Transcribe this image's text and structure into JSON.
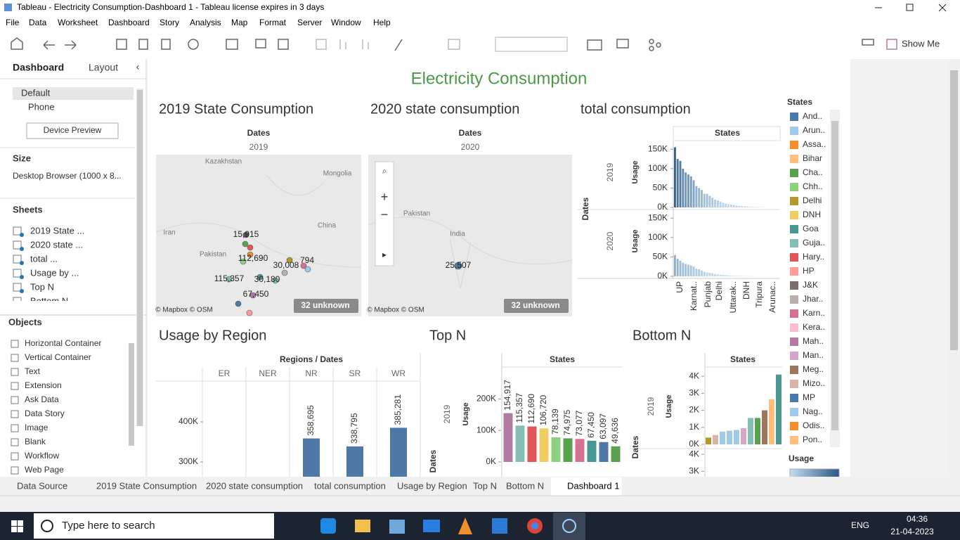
{
  "window": {
    "title": "Tableau - Electricity Consumption-Dashboard 1 - Tableau license expires in 3 days"
  },
  "menu": [
    "File",
    "Data",
    "Worksheet",
    "Dashboard",
    "Story",
    "Analysis",
    "Map",
    "Format",
    "Server",
    "Window",
    "Help"
  ],
  "toolbar": {
    "show_me": "Show Me"
  },
  "sidebar": {
    "tabs": [
      "Dashboard",
      "Layout"
    ],
    "devices": [
      "Default",
      "Phone"
    ],
    "device_preview": "Device Preview",
    "size_heading": "Size",
    "size_value": "Desktop Browser (1000 x 8...",
    "sheets_heading": "Sheets",
    "sheets": [
      "2019 State ...",
      "2020 state ...",
      "total ...",
      "Usage by ...",
      "Top N",
      "Bottom N"
    ],
    "objects_heading": "Objects",
    "objects": [
      "Horizontal Container",
      "Vertical Container",
      "Text",
      "Extension",
      "Ask Data",
      "Data Story",
      "Image",
      "Blank",
      "Workflow",
      "Web Page"
    ]
  },
  "dashboard": {
    "title": "Electricity Consumption",
    "map_2019": {
      "title": "2019 State Consumption",
      "header": "Dates",
      "year": "2019",
      "places": [
        "Kazakhstan",
        "Mongolia",
        "Iran",
        "China",
        "Pakistan"
      ],
      "values": [
        "15,915",
        "112,690",
        "30,008",
        "794",
        "115,357",
        "30,180",
        "67,450"
      ],
      "attribution": "© Mapbox © OSM",
      "unknown": "32 unknown"
    },
    "map_2020": {
      "title": "2020 state consumption",
      "header": "Dates",
      "year": "2020",
      "places": [
        "Pakistan",
        "India"
      ],
      "values": [
        "25,507"
      ],
      "attribution": "© Mapbox © OSM",
      "unknown": "32 unknown"
    },
    "total": {
      "title": "total consumption",
      "row_header": "Dates",
      "col_header": "States",
      "axis_label": "Usage",
      "ylim": [
        0,
        165000
      ],
      "yticks": [
        {
          "value": 0,
          "label": "0K"
        },
        {
          "value": 50000,
          "label": "50K"
        },
        {
          "value": 100000,
          "label": "100K"
        },
        {
          "value": 150000,
          "label": "150K"
        }
      ],
      "panels": [
        {
          "year": "2019",
          "values": [
            155000,
            125000,
            120000,
            100000,
            90000,
            85000,
            80000,
            70000,
            55000,
            50000,
            45000,
            35000,
            35000,
            30000,
            25000,
            20000,
            18000,
            15000,
            12000,
            10000,
            8000,
            7000,
            6000,
            5000,
            4000,
            3500,
            3000,
            2500,
            2000,
            1500,
            1200,
            1000,
            800,
            600,
            400,
            200
          ]
        },
        {
          "year": "2020",
          "values": [
            55000,
            45000,
            40000,
            35000,
            32000,
            30000,
            28000,
            25000,
            20000,
            18000,
            15000,
            12000,
            10000,
            9000,
            8000,
            6000,
            5000,
            4000,
            3500,
            3000,
            2500,
            2000,
            1500,
            1200,
            1000,
            800,
            600,
            500,
            400,
            300,
            250,
            200,
            150,
            100,
            80,
            50
          ]
        }
      ],
      "x_labels": [
        "UP",
        "Karnat..",
        "Punjab",
        "Delhi",
        "Uttarak..",
        "DNH",
        "Tripura",
        "Arunac.."
      ]
    },
    "legend": {
      "title": "States",
      "usage_title": "Usage",
      "items": [
        {
          "name": "And..",
          "color": "#4e79a7"
        },
        {
          "name": "Arun..",
          "color": "#a0cbe8"
        },
        {
          "name": "Assa..",
          "color": "#f28e2b"
        },
        {
          "name": "Bihar",
          "color": "#ffbe7d"
        },
        {
          "name": "Cha..",
          "color": "#59a14f"
        },
        {
          "name": "Chh..",
          "color": "#8cd17d"
        },
        {
          "name": "Delhi",
          "color": "#b6992d"
        },
        {
          "name": "DNH",
          "color": "#f1ce63"
        },
        {
          "name": "Goa",
          "color": "#499894"
        },
        {
          "name": "Guja..",
          "color": "#86bcb6"
        },
        {
          "name": "Hary..",
          "color": "#e15759"
        },
        {
          "name": "HP",
          "color": "#ff9d9a"
        },
        {
          "name": "J&K",
          "color": "#79706e"
        },
        {
          "name": "Jhar..",
          "color": "#bab0ac"
        },
        {
          "name": "Karn..",
          "color": "#d37295"
        },
        {
          "name": "Kera..",
          "color": "#fabfd2"
        },
        {
          "name": "Mah..",
          "color": "#b07aa1"
        },
        {
          "name": "Man..",
          "color": "#d4a6c8"
        },
        {
          "name": "Meg..",
          "color": "#9d7660"
        },
        {
          "name": "Mizo..",
          "color": "#d7b5a6"
        },
        {
          "name": "MP",
          "color": "#4e79a7"
        },
        {
          "name": "Nag..",
          "color": "#a0cbe8"
        },
        {
          "name": "Odis..",
          "color": "#f28e2b"
        },
        {
          "name": "Pon..",
          "color": "#ffbe7d"
        }
      ]
    },
    "region": {
      "title": "Usage by Region",
      "header": "Regions / Dates",
      "categories": [
        "ER",
        "NER",
        "NR",
        "SR",
        "WR"
      ],
      "values": [
        null,
        null,
        358695,
        338795,
        385281
      ],
      "value_labels": [
        null,
        null,
        "358,695",
        "338,795",
        "385,281"
      ],
      "color": "#4e79a7",
      "ylim": [
        260000,
        500000
      ],
      "yticks": [
        {
          "value": 300000,
          "label": "300K"
        },
        {
          "value": 400000,
          "label": "400K"
        }
      ]
    },
    "top_n": {
      "title": "Top N",
      "header": "States",
      "row_header": "Dates",
      "year": "2019",
      "axis_label": "Usage",
      "values": [
        154917,
        115357,
        112690,
        106720,
        78139,
        74975,
        73077,
        67450,
        63097,
        49636
      ],
      "value_labels": [
        "154,917",
        "115,357",
        "112,690",
        "106,720",
        "78,139",
        "74,975",
        "73,077",
        "67,450",
        "63,097",
        "49,636"
      ],
      "colors": [
        "#b07aa1",
        "#86bcb6",
        "#e15759",
        "#f1ce63",
        "#8cd17d",
        "#59a14f",
        "#d37295",
        "#499894",
        "#4e79a7",
        "#59a14f"
      ],
      "ylim": [
        0,
        250000
      ],
      "yticks": [
        {
          "value": 0,
          "label": "0K"
        },
        {
          "value": 100000,
          "label": "100K"
        },
        {
          "value": 200000,
          "label": "200K"
        }
      ]
    },
    "bottom_n": {
      "title": "Bottom N",
      "header": "States",
      "row_header": "Dates",
      "year": "2019",
      "axis_label": "Usage",
      "values": [
        400,
        550,
        750,
        800,
        850,
        950,
        1550,
        1550,
        2000,
        2650,
        4100
      ],
      "colors": [
        "#b6992d",
        "#d7b5a6",
        "#a0cbe8",
        "#a0cbe8",
        "#a0cbe8",
        "#d4a6c8",
        "#86bcb6",
        "#59a14f",
        "#9d7660",
        "#ffbe7d",
        "#499894"
      ],
      "ylim": [
        0,
        4500
      ],
      "yticks": [
        {
          "value": 0,
          "label": "0K"
        },
        {
          "value": 1000,
          "label": "1K"
        },
        {
          "value": 2000,
          "label": "2K"
        },
        {
          "value": 3000,
          "label": "3K"
        },
        {
          "value": 4000,
          "label": "4K"
        }
      ],
      "panel2_ticks": [
        {
          "value": 3000,
          "label": "3K"
        },
        {
          "value": 4000,
          "label": "4K"
        }
      ]
    }
  },
  "sheet_tabs": [
    "Data Source",
    "2019 State Consumption",
    "2020 state consumption",
    "total consumption",
    "Usage by Region",
    "Top N",
    "Bottom N",
    "Dashboard 1"
  ],
  "taskbar": {
    "search": "Type here to search",
    "lang": "ENG",
    "time": "04:36",
    "date": "21-04-2023"
  }
}
